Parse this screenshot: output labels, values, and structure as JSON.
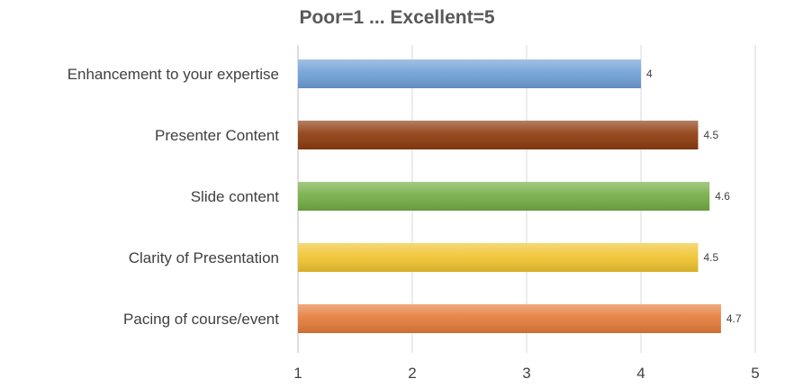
{
  "chart_data": {
    "type": "bar",
    "orientation": "horizontal",
    "title": "Poor=1 ... Excellent=5",
    "categories": [
      "Enhancement to your expertise",
      "Presenter Content",
      "Slide content",
      "Clarity of Presentation",
      "Pacing of course/event"
    ],
    "values": [
      4,
      4.5,
      4.6,
      4.5,
      4.7
    ],
    "data_labels": [
      "4",
      "4.5",
      "4.6",
      "4.5",
      "4.7"
    ],
    "colors": [
      "#6f9fd6",
      "#8e3b0f",
      "#74ad45",
      "#f1c42f",
      "#e57c3a"
    ],
    "xlim": [
      1,
      5
    ],
    "xticks": [
      1,
      2,
      3,
      4,
      5
    ],
    "grid": true,
    "legend": "none"
  }
}
